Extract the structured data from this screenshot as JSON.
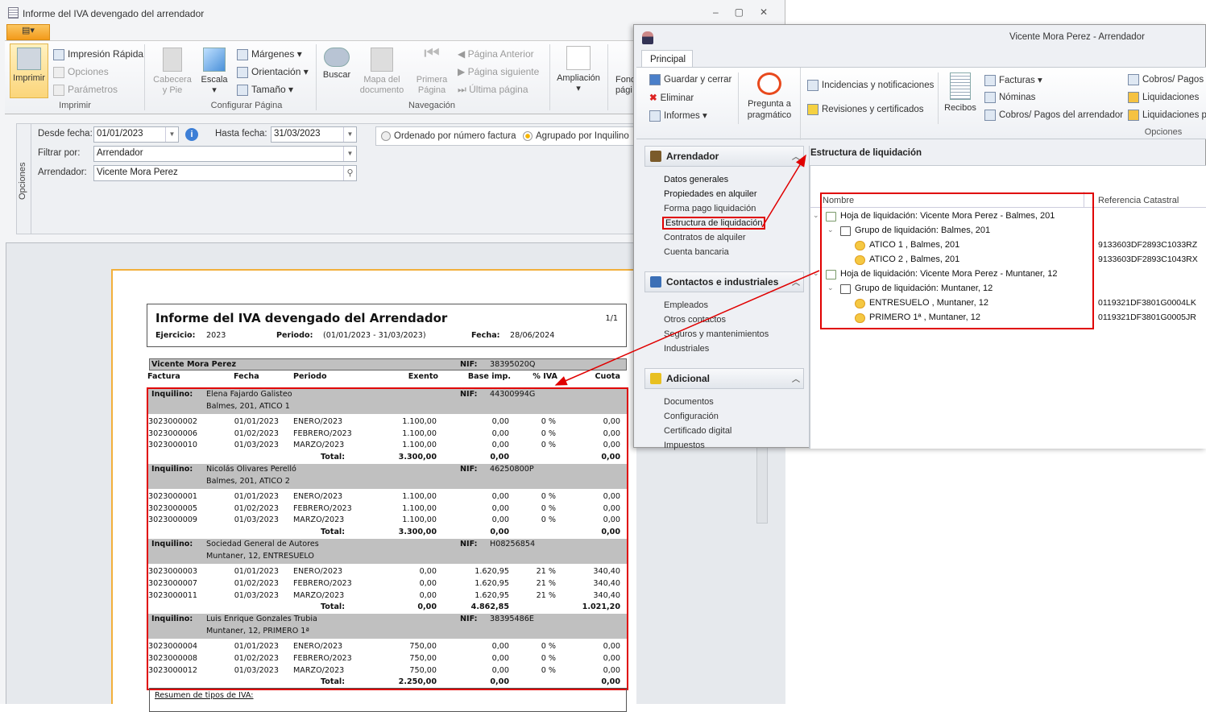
{
  "left_window": {
    "title": "Informe del IVA devengado del arrendador",
    "ribbon": {
      "print": {
        "imprimir": "Imprimir",
        "impresion_rapida": "Impresión Rápida",
        "opciones": "Opciones",
        "parametros": "Parámetros",
        "group": "Imprimir"
      },
      "page": {
        "cabecera": "Cabecera y Pie",
        "escala": "Escala",
        "margenes": "Márgenes",
        "orientacion": "Orientación",
        "tamano": "Tamaño",
        "group": "Configurar Página"
      },
      "nav": {
        "buscar": "Buscar",
        "mapa": "Mapa del documento",
        "primera": "Primera Página",
        "anterior": "Página Anterior",
        "siguiente": "Página siguiente",
        "ultima": "Última página",
        "group": "Navegación"
      },
      "ampliacion": "Ampliación",
      "fondo": "Fondo pági"
    },
    "options": {
      "side_label": "Opciones",
      "desde_label": "Desde fecha:",
      "desde_value": "01/01/2023",
      "hasta_label": "Hasta fecha:",
      "hasta_value": "31/03/2023",
      "filtrar_label": "Filtrar por:",
      "filtrar_value": "Arrendador",
      "arrendador_label": "Arrendador:",
      "arrendador_value": "Vicente Mora Perez",
      "radio1": "Ordenado por número factura",
      "radio2": "Agrupado por Inquilino",
      "selected": "radio2"
    },
    "report": {
      "title": "Informe del IVA devengado del Arrendador",
      "page": "1/1",
      "ejercicio_label": "Ejercicio:",
      "ejercicio": "2023",
      "periodo_label": "Periodo:",
      "periodo": "(01/01/2023 - 31/03/2023)",
      "fecha_label": "Fecha:",
      "fecha": "28/06/2024",
      "owner": "Vicente Mora Perez",
      "nif_label": "NIF:",
      "owner_nif": "38395020Q",
      "columns": [
        "Factura",
        "Fecha",
        "Periodo",
        "Exento",
        "Base imp.",
        "% IVA",
        "Cuota"
      ],
      "inquilino_label": "Inquilino:",
      "total_label": "Total:",
      "groups": [
        {
          "name": "Elena Fajardo Galisteo",
          "nif": "44300994G",
          "address": "Balmes, 201, ATICO 1",
          "rows": [
            [
              "3023000002",
              "01/01/2023",
              "ENERO/2023",
              "1.100,00",
              "0,00",
              "0 %",
              "0,00"
            ],
            [
              "3023000006",
              "01/02/2023",
              "FEBRERO/2023",
              "1.100,00",
              "0,00",
              "0 %",
              "0,00"
            ],
            [
              "3023000010",
              "01/03/2023",
              "MARZO/2023",
              "1.100,00",
              "0,00",
              "0 %",
              "0,00"
            ]
          ],
          "total": [
            "3.300,00",
            "0,00",
            "0,00"
          ]
        },
        {
          "name": "Nicolás Olivares Perelló",
          "nif": "46250800P",
          "address": "Balmes, 201, ATICO 2",
          "rows": [
            [
              "3023000001",
              "01/01/2023",
              "ENERO/2023",
              "1.100,00",
              "0,00",
              "0 %",
              "0,00"
            ],
            [
              "3023000005",
              "01/02/2023",
              "FEBRERO/2023",
              "1.100,00",
              "0,00",
              "0 %",
              "0,00"
            ],
            [
              "3023000009",
              "01/03/2023",
              "MARZO/2023",
              "1.100,00",
              "0,00",
              "0 %",
              "0,00"
            ]
          ],
          "total": [
            "3.300,00",
            "0,00",
            "0,00"
          ]
        },
        {
          "name": "Sociedad General de Autores",
          "nif": "H08256854",
          "address": "Muntaner, 12, ENTRESUELO",
          "rows": [
            [
              "3023000003",
              "01/01/2023",
              "ENERO/2023",
              "0,00",
              "1.620,95",
              "21 %",
              "340,40"
            ],
            [
              "3023000007",
              "01/02/2023",
              "FEBRERO/2023",
              "0,00",
              "1.620,95",
              "21 %",
              "340,40"
            ],
            [
              "3023000011",
              "01/03/2023",
              "MARZO/2023",
              "0,00",
              "1.620,95",
              "21 %",
              "340,40"
            ]
          ],
          "total": [
            "0,00",
            "4.862,85",
            "1.021,20"
          ]
        },
        {
          "name": "Luis Enrique Gonzales Trubia",
          "nif": "38395486E",
          "address": "Muntaner, 12, PRIMERO 1ª",
          "rows": [
            [
              "3023000004",
              "01/01/2023",
              "ENERO/2023",
              "750,00",
              "0,00",
              "0 %",
              "0,00"
            ],
            [
              "3023000008",
              "01/02/2023",
              "FEBRERO/2023",
              "750,00",
              "0,00",
              "0 %",
              "0,00"
            ],
            [
              "3023000012",
              "01/03/2023",
              "MARZO/2023",
              "750,00",
              "0,00",
              "0 %",
              "0,00"
            ]
          ],
          "total": [
            "2.250,00",
            "0,00",
            "0,00"
          ]
        }
      ],
      "resumen": "Resumen de tipos de IVA:"
    }
  },
  "right_window": {
    "title": "Vicente Mora Perez - Arrendador",
    "tab": "Principal",
    "ribbon": {
      "guardar": "Guardar y cerrar",
      "eliminar": "Eliminar",
      "informes": "Informes",
      "pregunta": "Pregunta a pragmático",
      "incidencias": "Incidencias y notificaciones",
      "revisiones": "Revisiones y certificados",
      "recibos": "Recibos",
      "facturas": "Facturas",
      "nominas": "Nóminas",
      "cobros_arr": "Cobros/ Pagos del arrendador",
      "cobros_d": "Cobros/ Pagos d",
      "liquidaciones": "Liquidaciones",
      "liquidaciones_pa": "Liquidaciones pa",
      "group_opciones": "Opciones"
    },
    "nav": [
      {
        "title": "Arrendador",
        "items": [
          "Datos generales",
          "Propiedades en alquiler",
          "Forma pago liquidación",
          "Estructura de liquidación",
          "Contratos de alquiler",
          "Cuenta bancaria"
        ]
      },
      {
        "title": "Contactos e industriales",
        "items": [
          "Empleados",
          "Otros contactos",
          "Seguros y mantenimientos",
          "Industriales"
        ]
      },
      {
        "title": "Adicional",
        "items": [
          "Documentos",
          "Configuración",
          "Certificado digital",
          "Impuestos"
        ]
      }
    ],
    "selected_nav": "Estructura de liquidación",
    "content_title": "Estructura de liquidación",
    "tree": {
      "columns": [
        "Nombre",
        "Referencia Catastral"
      ],
      "nodes": [
        {
          "level": 0,
          "icon": "sheet-icon",
          "label": "Hoja de liquidación: Vicente Mora Perez - Balmes, 201",
          "ref": ""
        },
        {
          "level": 1,
          "icon": "group-icon",
          "label": "Grupo de liquidación: Balmes, 201",
          "ref": ""
        },
        {
          "level": 2,
          "icon": "key-icon",
          "label": "ATICO 1 , Balmes, 201",
          "ref": "9133603DF2893C1033RZ"
        },
        {
          "level": 2,
          "icon": "key-icon",
          "label": "ATICO 2 , Balmes, 201",
          "ref": "9133603DF2893C1043RX"
        },
        {
          "level": 0,
          "icon": "sheet-icon",
          "label": "Hoja de liquidación: Vicente Mora Perez - Muntaner, 12",
          "ref": ""
        },
        {
          "level": 1,
          "icon": "group-icon",
          "label": "Grupo de liquidación: Muntaner, 12",
          "ref": ""
        },
        {
          "level": 2,
          "icon": "key-icon",
          "label": "ENTRESUELO , Muntaner, 12",
          "ref": "0119321DF3801G0004LK"
        },
        {
          "level": 2,
          "icon": "key-icon",
          "label": "PRIMERO 1ª , Muntaner, 12",
          "ref": "0119321DF3801G0005JR"
        }
      ]
    }
  },
  "colors": {
    "highlight": "#e00000",
    "app_button": "#f5a623",
    "selected_button": "#fbe39a"
  }
}
